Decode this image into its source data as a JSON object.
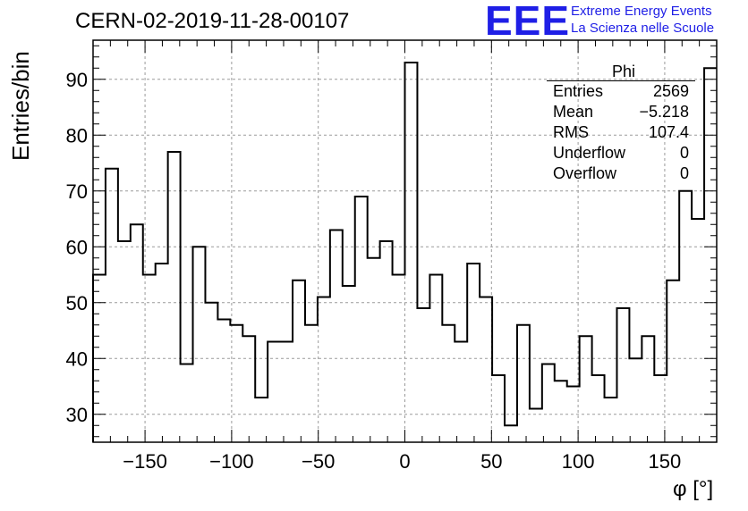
{
  "chart_data": {
    "type": "histogram",
    "title": "CERN-02-2019-11-28-00107",
    "xlabel": "φ [°]",
    "ylabel": "Entries/bin",
    "xlim": [
      -180,
      180
    ],
    "ylim": [
      25,
      97
    ],
    "bin_width": 7.2,
    "xticks": [
      -150,
      -100,
      -50,
      0,
      50,
      100,
      150
    ],
    "yticks": [
      30,
      40,
      50,
      60,
      70,
      80,
      90
    ],
    "grid": true,
    "values": [
      55,
      74,
      61,
      64,
      55,
      57,
      77,
      39,
      60,
      50,
      47,
      46,
      44,
      33,
      43,
      43,
      54,
      46,
      51,
      63,
      53,
      69,
      58,
      61,
      55,
      93,
      49,
      55,
      46,
      43,
      57,
      51,
      37,
      28,
      46,
      31,
      39,
      36,
      35,
      44,
      37,
      33,
      49,
      40,
      44,
      37,
      54,
      70,
      65,
      92
    ],
    "stats": {
      "name": "Phi",
      "rows": [
        {
          "label": "Entries",
          "value": "2569"
        },
        {
          "label": "Mean",
          "value": "−5.218"
        },
        {
          "label": "RMS",
          "value": "107.4"
        },
        {
          "label": "Underflow",
          "value": "0"
        },
        {
          "label": "Overflow",
          "value": "0"
        }
      ]
    }
  },
  "logo": {
    "mark": "EEE",
    "line1": "Extreme Energy Events",
    "line2": "La Scienza nelle Scuole"
  }
}
